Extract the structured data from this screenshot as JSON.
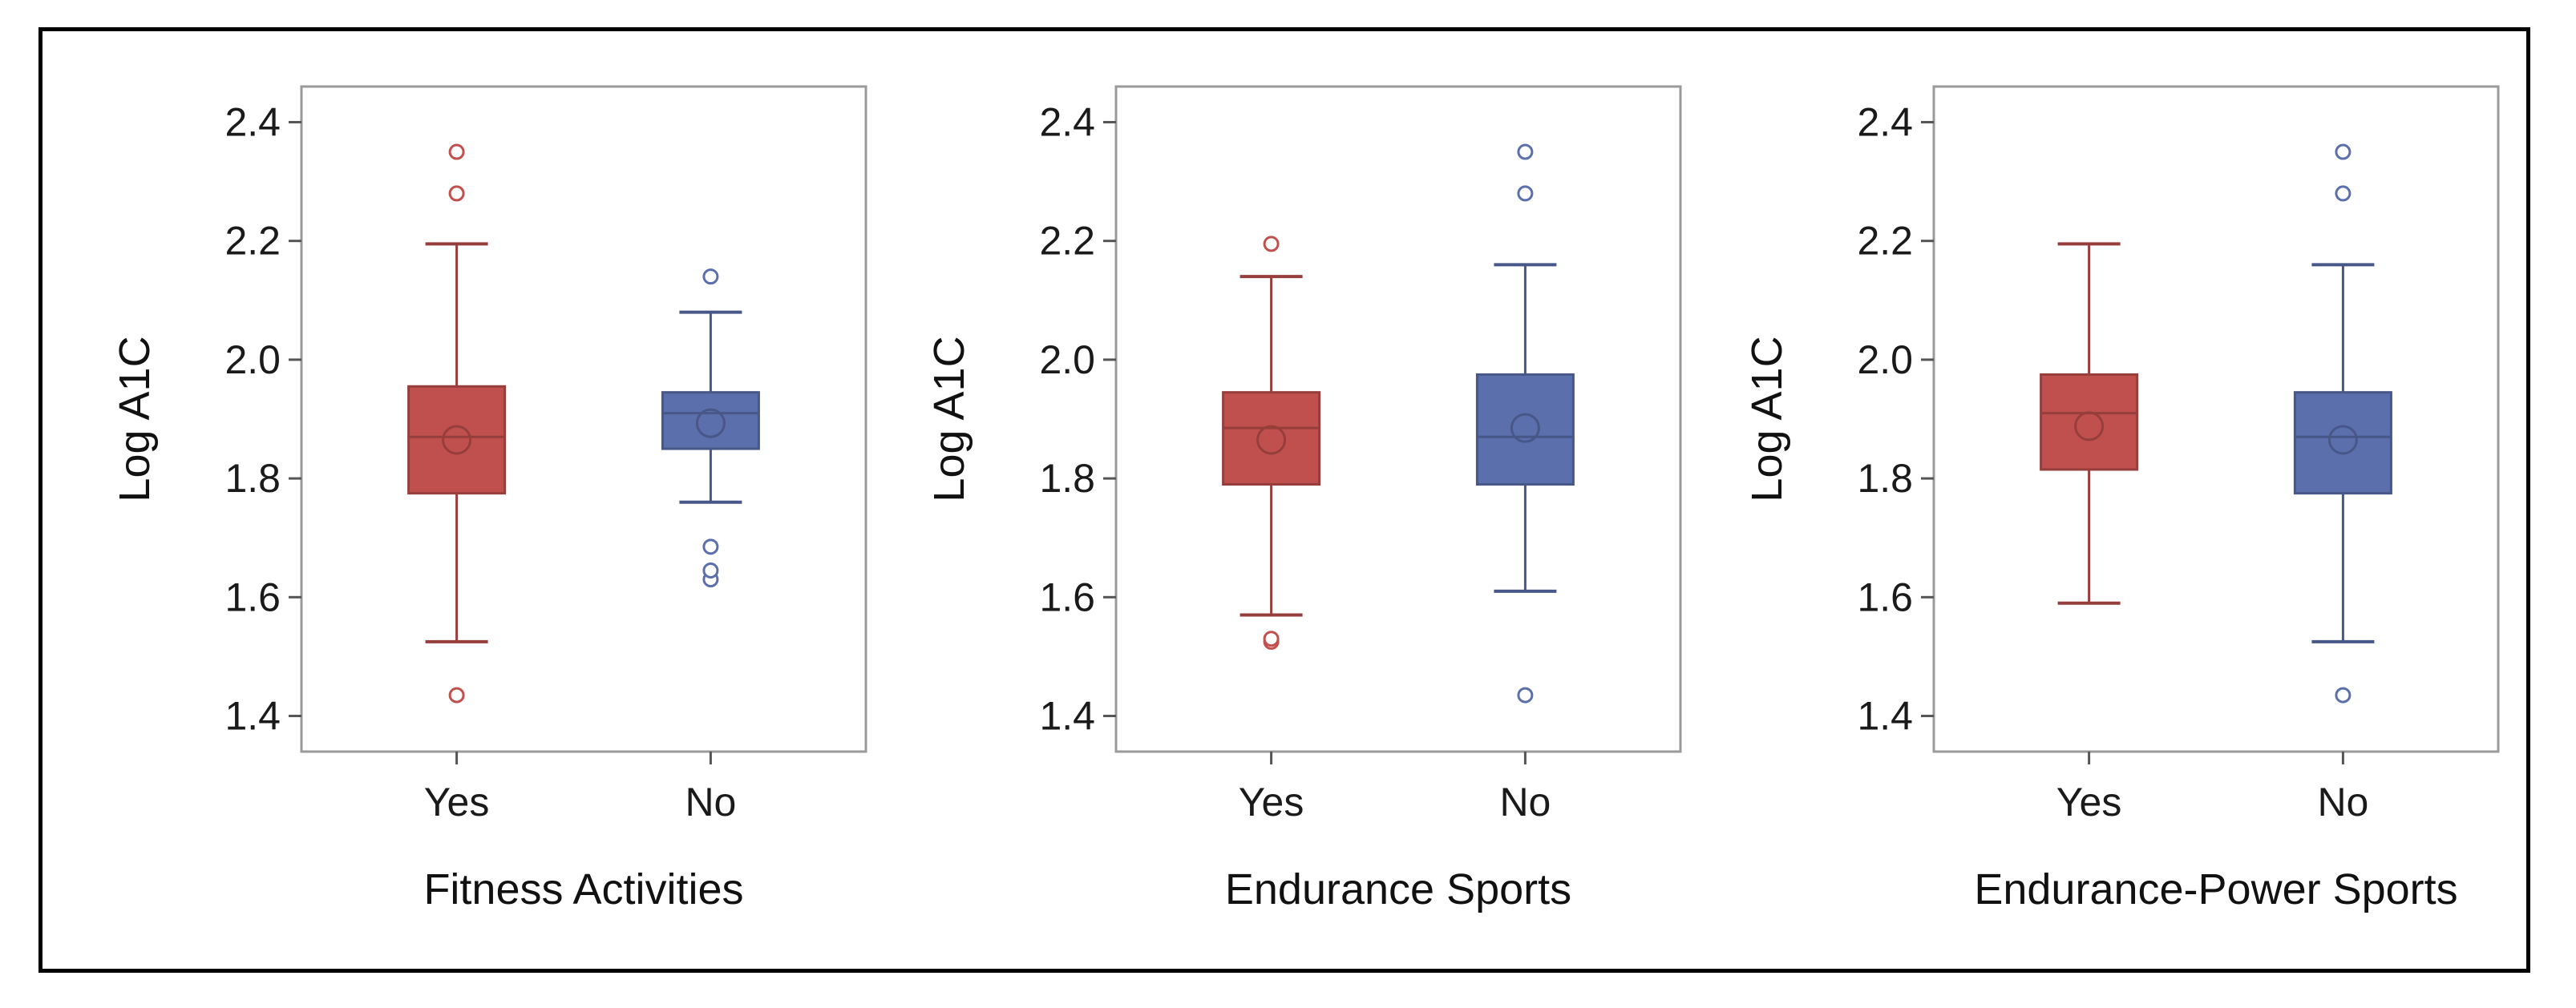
{
  "chart_data": [
    {
      "type": "box",
      "xlabel": "Fitness Activities",
      "ylabel": "Log A1C",
      "ylim": [
        1.34,
        2.46
      ],
      "yticks": [
        "1.4",
        "1.6",
        "1.8",
        "2.0",
        "2.2",
        "2.4"
      ],
      "grid": false,
      "categories": [
        "Yes",
        "No"
      ],
      "series": [
        {
          "category": "Yes",
          "color": "#c0504d",
          "whisker_low": 1.525,
          "q1": 1.775,
          "median": 1.87,
          "q3": 1.955,
          "whisker_high": 2.195,
          "mean": 1.865,
          "outliers": [
            1.435,
            2.28,
            2.35
          ]
        },
        {
          "category": "No",
          "color": "#5b6fad",
          "whisker_low": 1.76,
          "q1": 1.85,
          "median": 1.91,
          "q3": 1.945,
          "whisker_high": 2.08,
          "mean": 1.893,
          "outliers": [
            1.63,
            1.645,
            1.685,
            2.14
          ]
        }
      ]
    },
    {
      "type": "box",
      "xlabel": "Endurance Sports",
      "ylabel": "Log A1C",
      "ylim": [
        1.34,
        2.46
      ],
      "yticks": [
        "1.4",
        "1.6",
        "1.8",
        "2.0",
        "2.2",
        "2.4"
      ],
      "grid": false,
      "categories": [
        "Yes",
        "No"
      ],
      "series": [
        {
          "category": "Yes",
          "color": "#c0504d",
          "whisker_low": 1.57,
          "q1": 1.79,
          "median": 1.885,
          "q3": 1.945,
          "whisker_high": 2.14,
          "mean": 1.865,
          "outliers": [
            1.525,
            1.53,
            2.195
          ]
        },
        {
          "category": "No",
          "color": "#5b6fad",
          "whisker_low": 1.61,
          "q1": 1.79,
          "median": 1.87,
          "q3": 1.975,
          "whisker_high": 2.16,
          "mean": 1.885,
          "outliers": [
            1.435,
            2.28,
            2.35
          ]
        }
      ]
    },
    {
      "type": "box",
      "xlabel": "Endurance-Power Sports",
      "ylabel": "Log A1C",
      "ylim": [
        1.34,
        2.46
      ],
      "yticks": [
        "1.4",
        "1.6",
        "1.8",
        "2.0",
        "2.2",
        "2.4"
      ],
      "grid": false,
      "categories": [
        "Yes",
        "No"
      ],
      "series": [
        {
          "category": "Yes",
          "color": "#c0504d",
          "whisker_low": 1.59,
          "q1": 1.815,
          "median": 1.91,
          "q3": 1.975,
          "whisker_high": 2.195,
          "mean": 1.888,
          "outliers": []
        },
        {
          "category": "No",
          "color": "#5b6fad",
          "whisker_low": 1.525,
          "q1": 1.775,
          "median": 1.87,
          "q3": 1.945,
          "whisker_high": 2.16,
          "mean": 1.865,
          "outliers": [
            1.435,
            2.28,
            2.35
          ]
        }
      ]
    }
  ]
}
